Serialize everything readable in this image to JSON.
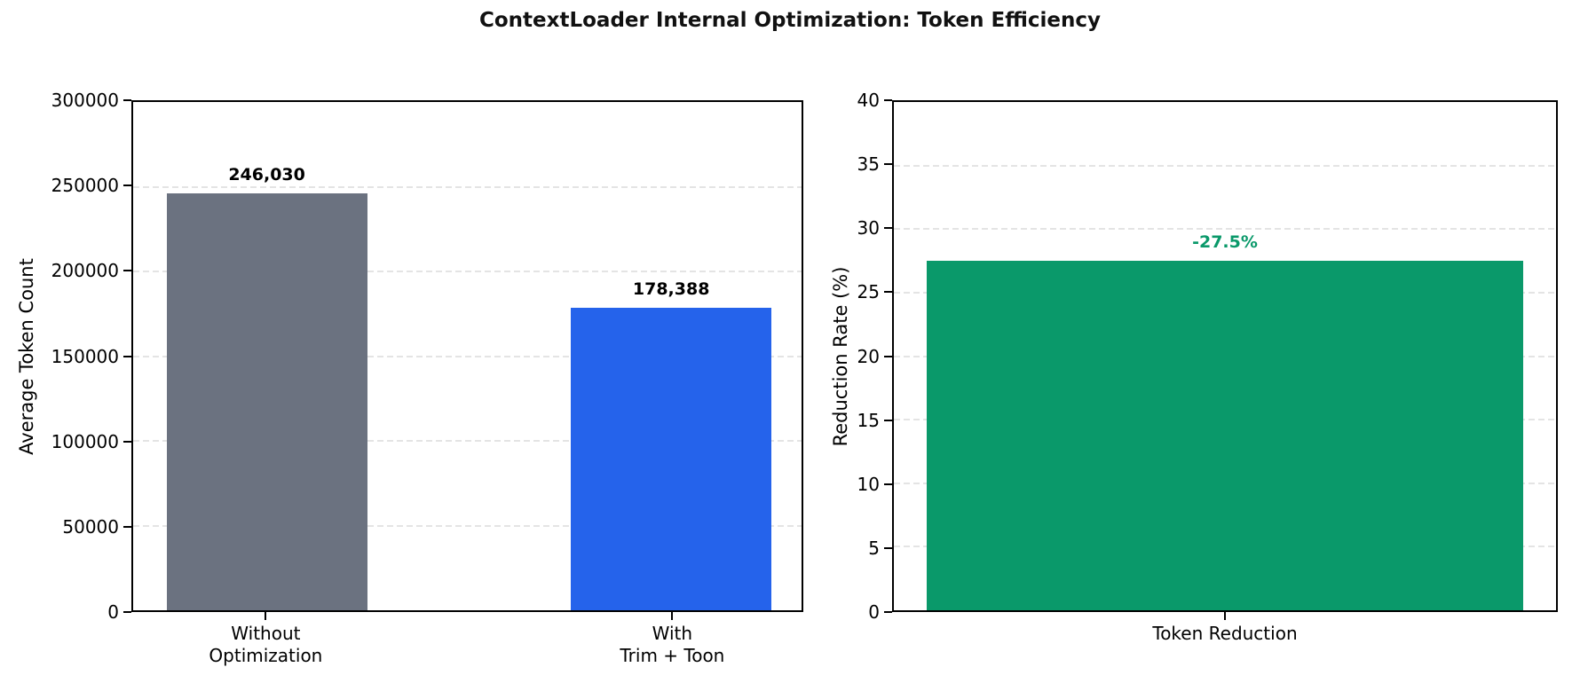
{
  "title": "ContextLoader Internal Optimization: Token Efficiency",
  "colors": {
    "without_optimization_bar": "#6b7280",
    "with_trim_toon_bar": "#2563eb",
    "reduction_bar": "#0a996a",
    "reduction_label_text": "#0a996a",
    "grid": "#e4e4e4",
    "axis": "#000000",
    "background": "#ffffff"
  },
  "chart_data": [
    {
      "type": "bar",
      "categories": [
        "Without\nOptimization",
        "With\nTrim + Toon"
      ],
      "values": [
        246030,
        178388
      ],
      "bar_labels": [
        "246,030",
        "178,388"
      ],
      "bar_colors": [
        "#6b7280",
        "#2563eb"
      ],
      "label_colors": [
        "#000000",
        "#000000"
      ],
      "xlabel": "",
      "ylabel": "Average Token Count",
      "ylim": [
        0,
        300000
      ],
      "yticks": [
        0,
        50000,
        100000,
        150000,
        200000,
        250000,
        300000
      ],
      "grid": "horizontal-dashed",
      "legend": "none",
      "bar_centers_frac": [
        0.2,
        0.805
      ],
      "bar_width_frac": 0.3
    },
    {
      "type": "bar",
      "categories": [
        "Token Reduction"
      ],
      "values": [
        27.5
      ],
      "bar_labels": [
        "-27.5%"
      ],
      "bar_colors": [
        "#0a996a"
      ],
      "label_colors": [
        "#0a996a"
      ],
      "xlabel": "",
      "ylabel": "Reduction Rate (%)",
      "ylim": [
        0,
        40
      ],
      "yticks": [
        0,
        5,
        10,
        15,
        20,
        25,
        30,
        35,
        40
      ],
      "grid": "horizontal-dashed",
      "legend": "none",
      "bar_centers_frac": [
        0.5
      ],
      "bar_width_frac": 0.9
    }
  ]
}
